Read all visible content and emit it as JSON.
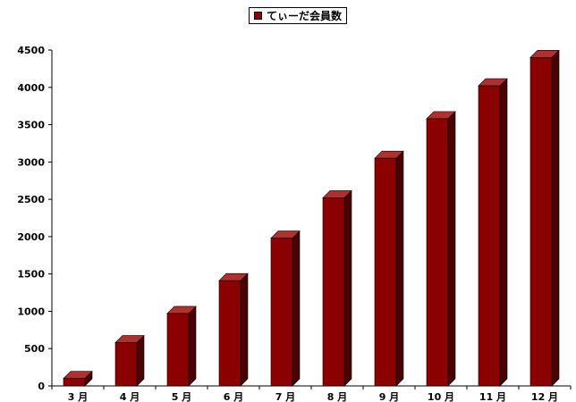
{
  "chart_data": {
    "type": "bar",
    "categories": [
      "3 月",
      "4 月",
      "5 月",
      "6 月",
      "7 月",
      "8 月",
      "9 月",
      "10 月",
      "11 月",
      "12 月"
    ],
    "series": [
      {
        "name": "てぃーだ会員数",
        "values": [
          100,
          580,
          970,
          1410,
          1980,
          2520,
          3050,
          3580,
          4020,
          4400
        ]
      }
    ],
    "ylim": [
      0,
      4500
    ],
    "yticks": [
      0,
      500,
      1000,
      1500,
      2000,
      2500,
      3000,
      3500,
      4000,
      4500
    ],
    "xlabel": "",
    "ylabel": "",
    "grid": false,
    "legend_position": "top",
    "bar_3d": true,
    "colors": {
      "bar_front": "#8b0000",
      "bar_side": "#4a0000",
      "bar_top": "#b03030"
    }
  }
}
